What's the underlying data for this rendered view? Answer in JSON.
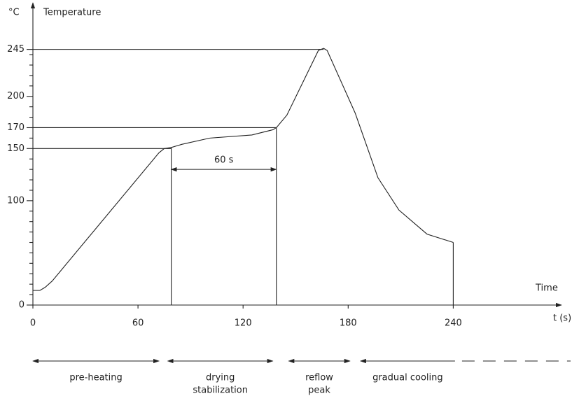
{
  "chart_data": {
    "type": "line",
    "y_unit": "°C",
    "y_label": "Temperature",
    "x_label": "Time",
    "x_unit": "t (s)",
    "xlim": [
      0,
      301
    ],
    "ylim": [
      0,
      289
    ],
    "xticks": [
      0,
      60,
      120,
      180,
      240
    ],
    "yticks": [
      0,
      100,
      150,
      170,
      200,
      245
    ],
    "y_minor_ticks": [
      10,
      20,
      30,
      40,
      50,
      60,
      70,
      80,
      90,
      110,
      120,
      130,
      140,
      160,
      180,
      190,
      210,
      220,
      230,
      240
    ],
    "series": [
      {
        "color": "#222222",
        "x": [
          0,
          4,
          7,
          11,
          72,
          75,
          79,
          85,
          101,
          125,
          137,
          139,
          145,
          163,
          166,
          168,
          184,
          197,
          209,
          225,
          240
        ],
        "values": [
          14,
          14,
          17,
          23,
          146,
          150,
          151,
          154,
          160,
          163,
          168,
          170,
          182,
          244,
          246,
          244,
          184,
          122,
          91,
          68,
          60
        ]
      }
    ],
    "hlines": [
      {
        "y": 150,
        "x": 79
      },
      {
        "y": 170,
        "x": 139
      },
      {
        "y": 245,
        "x": 166
      }
    ],
    "vlines": [
      {
        "x": 79,
        "y": 151
      },
      {
        "x": 139,
        "y": 170
      },
      {
        "x": 240,
        "y": 60
      }
    ],
    "span": {
      "label": "60 s",
      "x": [
        79,
        139
      ],
      "y": 130
    },
    "phases": [
      {
        "lines": [
          "pre-heating"
        ],
        "start": 0,
        "end": 72
      },
      {
        "lines": [
          "drying",
          "stabilization"
        ],
        "start": 77,
        "end": 137
      },
      {
        "lines": [
          "reflow",
          "peak"
        ],
        "start": 146,
        "end": 181
      },
      {
        "lines": [
          "gradual cooling"
        ],
        "start": 187,
        "end": 307,
        "dashed_from": 241
      }
    ]
  }
}
